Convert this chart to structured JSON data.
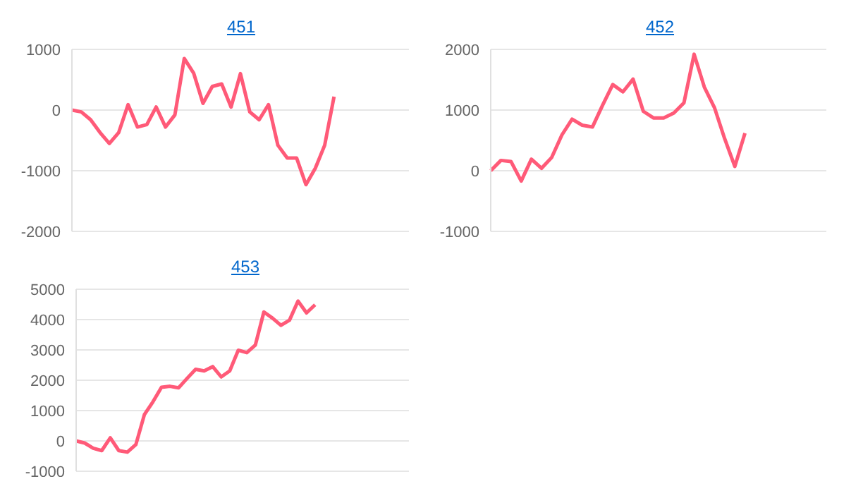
{
  "chart_data": [
    {
      "type": "line",
      "title": "451",
      "categories": [
        null,
        null,
        null,
        null,
        null,
        null,
        null,
        null,
        null,
        null,
        null,
        null,
        null,
        null,
        null,
        null,
        null,
        null,
        null,
        null,
        null,
        null,
        null,
        null,
        null,
        null,
        null,
        null,
        null,
        null,
        null,
        null,
        null,
        null,
        null,
        null,
        null
      ],
      "series": [
        {
          "color": "#ff5a78",
          "values": [
            0,
            -30,
            -160,
            -370,
            -550,
            -370,
            90,
            -280,
            -240,
            50,
            -280,
            -80,
            850,
            610,
            110,
            390,
            430,
            50,
            600,
            -30,
            -160,
            90,
            -580,
            -790,
            -790,
            -1230,
            -960,
            -580,
            220,
            null,
            null,
            null,
            null,
            null,
            null,
            null,
            null
          ]
        }
      ],
      "ylim": [
        -2000,
        1000
      ],
      "yticks": [
        -2000,
        -1000,
        0,
        1000
      ],
      "grid": "y",
      "tick_labels": "y",
      "marker": "none",
      "line_style": "solid"
    },
    {
      "type": "line",
      "title": "452",
      "categories": [
        null,
        null,
        null,
        null,
        null,
        null,
        null,
        null,
        null,
        null,
        null,
        null,
        null,
        null,
        null,
        null,
        null,
        null,
        null,
        null,
        null,
        null,
        null,
        null,
        null,
        null,
        null,
        null,
        null,
        null,
        null,
        null,
        null,
        null
      ],
      "series": [
        {
          "color": "#ff5a78",
          "values": [
            0,
            170,
            150,
            -170,
            190,
            40,
            220,
            590,
            850,
            750,
            720,
            1080,
            1420,
            1300,
            1510,
            980,
            870,
            870,
            950,
            1120,
            1920,
            1380,
            1040,
            530,
            70,
            620,
            null,
            null,
            null,
            null,
            null,
            null,
            null,
            null
          ]
        }
      ],
      "ylim": [
        -1000,
        2000
      ],
      "yticks": [
        -1000,
        0,
        1000,
        2000
      ],
      "grid": "y",
      "tick_labels": "y",
      "marker": "none",
      "line_style": "solid"
    },
    {
      "type": "line",
      "title": "453",
      "categories": [
        null,
        null,
        null,
        null,
        null,
        null,
        null,
        null,
        null,
        null,
        null,
        null,
        null,
        null,
        null,
        null,
        null,
        null,
        null,
        null,
        null,
        null,
        null,
        null,
        null,
        null,
        null,
        null,
        null,
        null,
        null,
        null,
        null,
        null,
        null,
        null,
        null,
        null,
        null,
        null
      ],
      "series": [
        {
          "color": "#ff5a78",
          "values": [
            0,
            -70,
            -240,
            -320,
            100,
            -320,
            -370,
            -120,
            870,
            1290,
            1770,
            1800,
            1750,
            2060,
            2360,
            2310,
            2450,
            2110,
            2310,
            2990,
            2910,
            3160,
            4250,
            4050,
            3810,
            3980,
            4610,
            4220,
            4490,
            null,
            null,
            null,
            null,
            null,
            null,
            null,
            null,
            null,
            null,
            null
          ]
        }
      ],
      "ylim": [
        -1000,
        5000
      ],
      "yticks": [
        -1000,
        0,
        1000,
        2000,
        3000,
        4000,
        5000
      ],
      "grid": "y",
      "tick_labels": "y",
      "marker": "none",
      "line_style": "solid"
    }
  ]
}
